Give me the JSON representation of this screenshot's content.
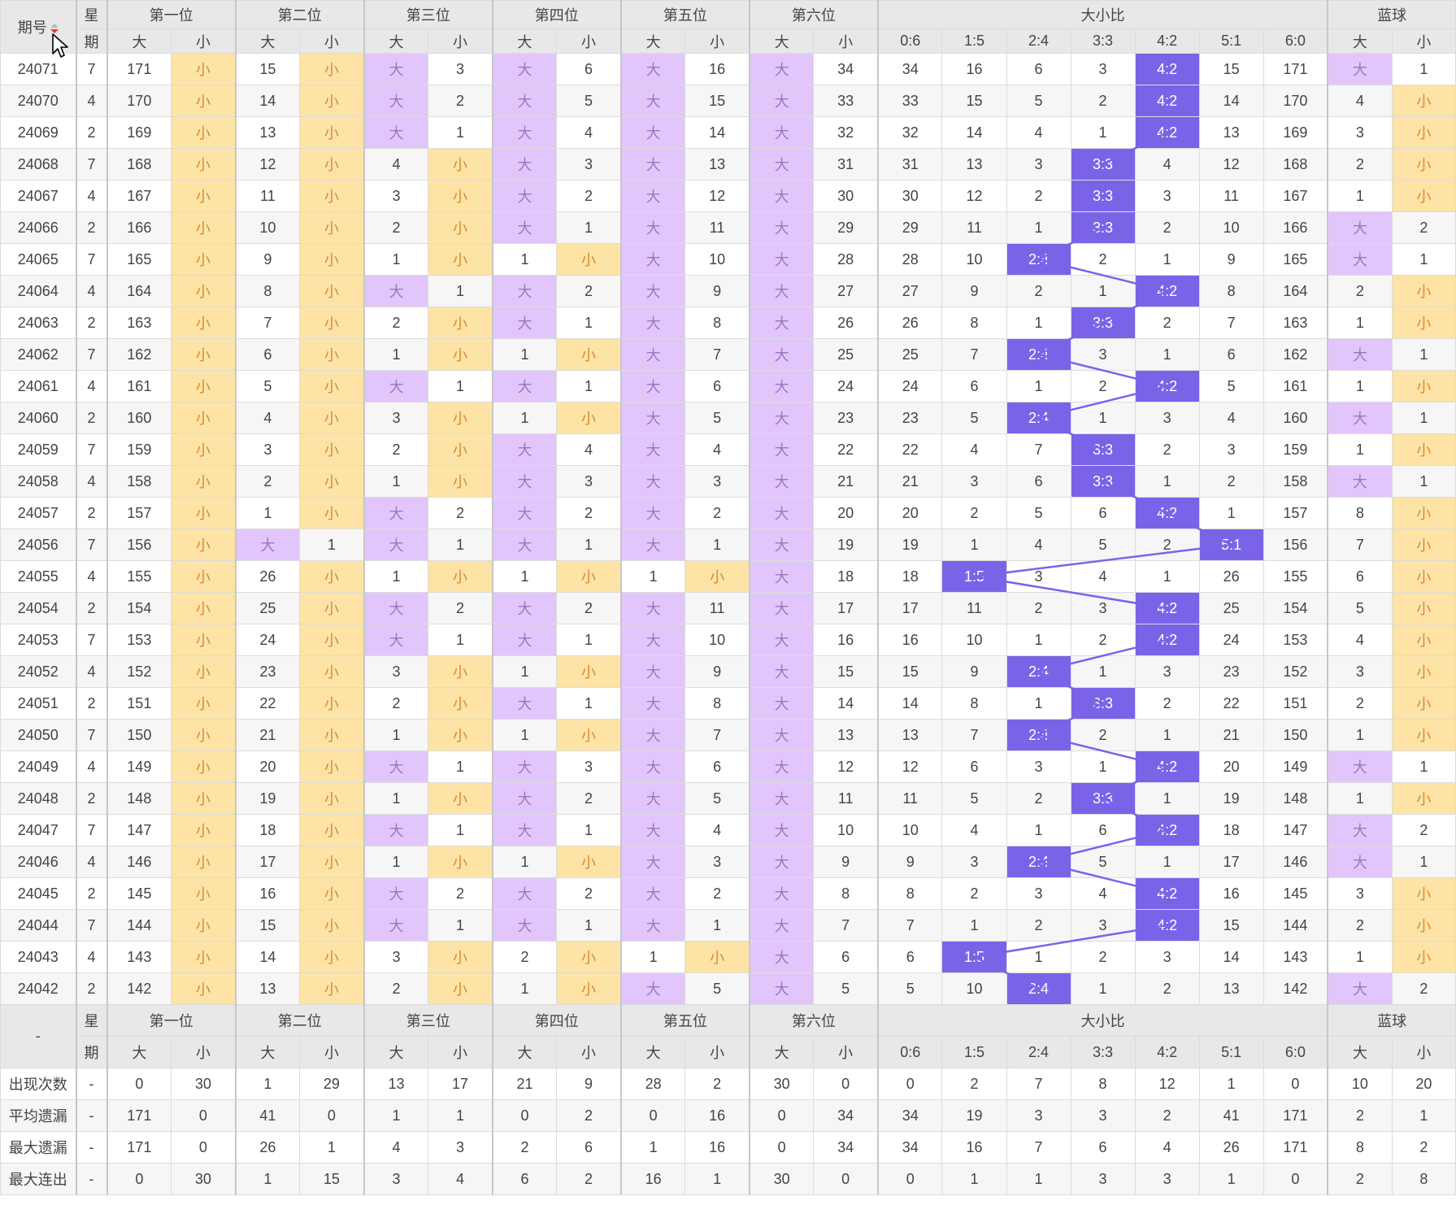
{
  "header": {
    "issue_label": "期号",
    "weekday_top": "星",
    "weekday_bottom": "期",
    "positions": [
      "第一位",
      "第二位",
      "第三位",
      "第四位",
      "第五位",
      "第六位"
    ],
    "ratio_title": "大小比",
    "blue_title": "蓝球",
    "big": "大",
    "small": "小",
    "ratio_labels": [
      "0:6",
      "1:5",
      "2:4",
      "3:3",
      "4:2",
      "5:1",
      "6:0"
    ]
  },
  "footer": {
    "issue_dash": "-",
    "weekday_top": "星",
    "weekday_bottom": "期"
  },
  "rows": [
    {
      "issue": "24071",
      "wd": "7",
      "p": [
        [
          "171",
          "小"
        ],
        [
          "15",
          "小"
        ],
        [
          "大",
          "3"
        ],
        [
          "大",
          "6"
        ],
        [
          "大",
          "16"
        ],
        [
          "大",
          "34"
        ]
      ],
      "r": [
        "34",
        "16",
        "6",
        "3",
        "4:2",
        "15",
        "171"
      ],
      "b": [
        "大",
        "1"
      ]
    },
    {
      "issue": "24070",
      "wd": "4",
      "p": [
        [
          "170",
          "小"
        ],
        [
          "14",
          "小"
        ],
        [
          "大",
          "2"
        ],
        [
          "大",
          "5"
        ],
        [
          "大",
          "15"
        ],
        [
          "大",
          "33"
        ]
      ],
      "r": [
        "33",
        "15",
        "5",
        "2",
        "4:2",
        "14",
        "170"
      ],
      "b": [
        "4",
        "小"
      ]
    },
    {
      "issue": "24069",
      "wd": "2",
      "p": [
        [
          "169",
          "小"
        ],
        [
          "13",
          "小"
        ],
        [
          "大",
          "1"
        ],
        [
          "大",
          "4"
        ],
        [
          "大",
          "14"
        ],
        [
          "大",
          "32"
        ]
      ],
      "r": [
        "32",
        "14",
        "4",
        "1",
        "4:2",
        "13",
        "169"
      ],
      "b": [
        "3",
        "小"
      ]
    },
    {
      "issue": "24068",
      "wd": "7",
      "p": [
        [
          "168",
          "小"
        ],
        [
          "12",
          "小"
        ],
        [
          "4",
          "小"
        ],
        [
          "大",
          "3"
        ],
        [
          "大",
          "13"
        ],
        [
          "大",
          "31"
        ]
      ],
      "r": [
        "31",
        "13",
        "3",
        "3:3",
        "4",
        "12",
        "168"
      ],
      "b": [
        "2",
        "小"
      ]
    },
    {
      "issue": "24067",
      "wd": "4",
      "p": [
        [
          "167",
          "小"
        ],
        [
          "11",
          "小"
        ],
        [
          "3",
          "小"
        ],
        [
          "大",
          "2"
        ],
        [
          "大",
          "12"
        ],
        [
          "大",
          "30"
        ]
      ],
      "r": [
        "30",
        "12",
        "2",
        "3:3",
        "3",
        "11",
        "167"
      ],
      "b": [
        "1",
        "小"
      ]
    },
    {
      "issue": "24066",
      "wd": "2",
      "p": [
        [
          "166",
          "小"
        ],
        [
          "10",
          "小"
        ],
        [
          "2",
          "小"
        ],
        [
          "大",
          "1"
        ],
        [
          "大",
          "11"
        ],
        [
          "大",
          "29"
        ]
      ],
      "r": [
        "29",
        "11",
        "1",
        "3:3",
        "2",
        "10",
        "166"
      ],
      "b": [
        "大",
        "2"
      ]
    },
    {
      "issue": "24065",
      "wd": "7",
      "p": [
        [
          "165",
          "小"
        ],
        [
          "9",
          "小"
        ],
        [
          "1",
          "小"
        ],
        [
          "1",
          "小"
        ],
        [
          "大",
          "10"
        ],
        [
          "大",
          "28"
        ]
      ],
      "r": [
        "28",
        "10",
        "2:4",
        "2",
        "1",
        "9",
        "165"
      ],
      "b": [
        "大",
        "1"
      ]
    },
    {
      "issue": "24064",
      "wd": "4",
      "p": [
        [
          "164",
          "小"
        ],
        [
          "8",
          "小"
        ],
        [
          "大",
          "1"
        ],
        [
          "大",
          "2"
        ],
        [
          "大",
          "9"
        ],
        [
          "大",
          "27"
        ]
      ],
      "r": [
        "27",
        "9",
        "2",
        "1",
        "4:2",
        "8",
        "164"
      ],
      "b": [
        "2",
        "小"
      ]
    },
    {
      "issue": "24063",
      "wd": "2",
      "p": [
        [
          "163",
          "小"
        ],
        [
          "7",
          "小"
        ],
        [
          "2",
          "小"
        ],
        [
          "大",
          "1"
        ],
        [
          "大",
          "8"
        ],
        [
          "大",
          "26"
        ]
      ],
      "r": [
        "26",
        "8",
        "1",
        "3:3",
        "2",
        "7",
        "163"
      ],
      "b": [
        "1",
        "小"
      ]
    },
    {
      "issue": "24062",
      "wd": "7",
      "p": [
        [
          "162",
          "小"
        ],
        [
          "6",
          "小"
        ],
        [
          "1",
          "小"
        ],
        [
          "1",
          "小"
        ],
        [
          "大",
          "7"
        ],
        [
          "大",
          "25"
        ]
      ],
      "r": [
        "25",
        "7",
        "2:4",
        "3",
        "1",
        "6",
        "162"
      ],
      "b": [
        "大",
        "1"
      ]
    },
    {
      "issue": "24061",
      "wd": "4",
      "p": [
        [
          "161",
          "小"
        ],
        [
          "5",
          "小"
        ],
        [
          "大",
          "1"
        ],
        [
          "大",
          "1"
        ],
        [
          "大",
          "6"
        ],
        [
          "大",
          "24"
        ]
      ],
      "r": [
        "24",
        "6",
        "1",
        "2",
        "4:2",
        "5",
        "161"
      ],
      "b": [
        "1",
        "小"
      ]
    },
    {
      "issue": "24060",
      "wd": "2",
      "p": [
        [
          "160",
          "小"
        ],
        [
          "4",
          "小"
        ],
        [
          "3",
          "小"
        ],
        [
          "1",
          "小"
        ],
        [
          "大",
          "5"
        ],
        [
          "大",
          "23"
        ]
      ],
      "r": [
        "23",
        "5",
        "2:4",
        "1",
        "3",
        "4",
        "160"
      ],
      "b": [
        "大",
        "1"
      ]
    },
    {
      "issue": "24059",
      "wd": "7",
      "p": [
        [
          "159",
          "小"
        ],
        [
          "3",
          "小"
        ],
        [
          "2",
          "小"
        ],
        [
          "大",
          "4"
        ],
        [
          "大",
          "4"
        ],
        [
          "大",
          "22"
        ]
      ],
      "r": [
        "22",
        "4",
        "7",
        "3:3",
        "2",
        "3",
        "159"
      ],
      "b": [
        "1",
        "小"
      ]
    },
    {
      "issue": "24058",
      "wd": "4",
      "p": [
        [
          "158",
          "小"
        ],
        [
          "2",
          "小"
        ],
        [
          "1",
          "小"
        ],
        [
          "大",
          "3"
        ],
        [
          "大",
          "3"
        ],
        [
          "大",
          "21"
        ]
      ],
      "r": [
        "21",
        "3",
        "6",
        "3:3",
        "1",
        "2",
        "158"
      ],
      "b": [
        "大",
        "1"
      ]
    },
    {
      "issue": "24057",
      "wd": "2",
      "p": [
        [
          "157",
          "小"
        ],
        [
          "1",
          "小"
        ],
        [
          "大",
          "2"
        ],
        [
          "大",
          "2"
        ],
        [
          "大",
          "2"
        ],
        [
          "大",
          "20"
        ]
      ],
      "r": [
        "20",
        "2",
        "5",
        "6",
        "4:2",
        "1",
        "157"
      ],
      "b": [
        "8",
        "小"
      ]
    },
    {
      "issue": "24056",
      "wd": "7",
      "p": [
        [
          "156",
          "小"
        ],
        [
          "大",
          "1"
        ],
        [
          "大",
          "1"
        ],
        [
          "大",
          "1"
        ],
        [
          "大",
          "1"
        ],
        [
          "大",
          "19"
        ]
      ],
      "r": [
        "19",
        "1",
        "4",
        "5",
        "2",
        "5:1",
        "156"
      ],
      "b": [
        "7",
        "小"
      ]
    },
    {
      "issue": "24055",
      "wd": "4",
      "p": [
        [
          "155",
          "小"
        ],
        [
          "26",
          "小"
        ],
        [
          "1",
          "小"
        ],
        [
          "1",
          "小"
        ],
        [
          "1",
          "小"
        ],
        [
          "大",
          "18"
        ]
      ],
      "r": [
        "18",
        "1:5",
        "3",
        "4",
        "1",
        "26",
        "155"
      ],
      "b": [
        "6",
        "小"
      ]
    },
    {
      "issue": "24054",
      "wd": "2",
      "p": [
        [
          "154",
          "小"
        ],
        [
          "25",
          "小"
        ],
        [
          "大",
          "2"
        ],
        [
          "大",
          "2"
        ],
        [
          "大",
          "11"
        ],
        [
          "大",
          "17"
        ]
      ],
      "r": [
        "17",
        "11",
        "2",
        "3",
        "4:2",
        "25",
        "154"
      ],
      "b": [
        "5",
        "小"
      ]
    },
    {
      "issue": "24053",
      "wd": "7",
      "p": [
        [
          "153",
          "小"
        ],
        [
          "24",
          "小"
        ],
        [
          "大",
          "1"
        ],
        [
          "大",
          "1"
        ],
        [
          "大",
          "10"
        ],
        [
          "大",
          "16"
        ]
      ],
      "r": [
        "16",
        "10",
        "1",
        "2",
        "4:2",
        "24",
        "153"
      ],
      "b": [
        "4",
        "小"
      ]
    },
    {
      "issue": "24052",
      "wd": "4",
      "p": [
        [
          "152",
          "小"
        ],
        [
          "23",
          "小"
        ],
        [
          "3",
          "小"
        ],
        [
          "1",
          "小"
        ],
        [
          "大",
          "9"
        ],
        [
          "大",
          "15"
        ]
      ],
      "r": [
        "15",
        "9",
        "2:4",
        "1",
        "3",
        "23",
        "152"
      ],
      "b": [
        "3",
        "小"
      ]
    },
    {
      "issue": "24051",
      "wd": "2",
      "p": [
        [
          "151",
          "小"
        ],
        [
          "22",
          "小"
        ],
        [
          "2",
          "小"
        ],
        [
          "大",
          "1"
        ],
        [
          "大",
          "8"
        ],
        [
          "大",
          "14"
        ]
      ],
      "r": [
        "14",
        "8",
        "1",
        "3:3",
        "2",
        "22",
        "151"
      ],
      "b": [
        "2",
        "小"
      ]
    },
    {
      "issue": "24050",
      "wd": "7",
      "p": [
        [
          "150",
          "小"
        ],
        [
          "21",
          "小"
        ],
        [
          "1",
          "小"
        ],
        [
          "1",
          "小"
        ],
        [
          "大",
          "7"
        ],
        [
          "大",
          "13"
        ]
      ],
      "r": [
        "13",
        "7",
        "2:4",
        "2",
        "1",
        "21",
        "150"
      ],
      "b": [
        "1",
        "小"
      ]
    },
    {
      "issue": "24049",
      "wd": "4",
      "p": [
        [
          "149",
          "小"
        ],
        [
          "20",
          "小"
        ],
        [
          "大",
          "1"
        ],
        [
          "大",
          "3"
        ],
        [
          "大",
          "6"
        ],
        [
          "大",
          "12"
        ]
      ],
      "r": [
        "12",
        "6",
        "3",
        "1",
        "4:2",
        "20",
        "149"
      ],
      "b": [
        "大",
        "1"
      ]
    },
    {
      "issue": "24048",
      "wd": "2",
      "p": [
        [
          "148",
          "小"
        ],
        [
          "19",
          "小"
        ],
        [
          "1",
          "小"
        ],
        [
          "大",
          "2"
        ],
        [
          "大",
          "5"
        ],
        [
          "大",
          "11"
        ]
      ],
      "r": [
        "11",
        "5",
        "2",
        "3:3",
        "1",
        "19",
        "148"
      ],
      "b": [
        "1",
        "小"
      ]
    },
    {
      "issue": "24047",
      "wd": "7",
      "p": [
        [
          "147",
          "小"
        ],
        [
          "18",
          "小"
        ],
        [
          "大",
          "1"
        ],
        [
          "大",
          "1"
        ],
        [
          "大",
          "4"
        ],
        [
          "大",
          "10"
        ]
      ],
      "r": [
        "10",
        "4",
        "1",
        "6",
        "4:2",
        "18",
        "147"
      ],
      "b": [
        "大",
        "2"
      ]
    },
    {
      "issue": "24046",
      "wd": "4",
      "p": [
        [
          "146",
          "小"
        ],
        [
          "17",
          "小"
        ],
        [
          "1",
          "小"
        ],
        [
          "1",
          "小"
        ],
        [
          "大",
          "3"
        ],
        [
          "大",
          "9"
        ]
      ],
      "r": [
        "9",
        "3",
        "2:4",
        "5",
        "1",
        "17",
        "146"
      ],
      "b": [
        "大",
        "1"
      ]
    },
    {
      "issue": "24045",
      "wd": "2",
      "p": [
        [
          "145",
          "小"
        ],
        [
          "16",
          "小"
        ],
        [
          "大",
          "2"
        ],
        [
          "大",
          "2"
        ],
        [
          "大",
          "2"
        ],
        [
          "大",
          "8"
        ]
      ],
      "r": [
        "8",
        "2",
        "3",
        "4",
        "4:2",
        "16",
        "145"
      ],
      "b": [
        "3",
        "小"
      ]
    },
    {
      "issue": "24044",
      "wd": "7",
      "p": [
        [
          "144",
          "小"
        ],
        [
          "15",
          "小"
        ],
        [
          "大",
          "1"
        ],
        [
          "大",
          "1"
        ],
        [
          "大",
          "1"
        ],
        [
          "大",
          "7"
        ]
      ],
      "r": [
        "7",
        "1",
        "2",
        "3",
        "4:2",
        "15",
        "144"
      ],
      "b": [
        "2",
        "小"
      ]
    },
    {
      "issue": "24043",
      "wd": "4",
      "p": [
        [
          "143",
          "小"
        ],
        [
          "14",
          "小"
        ],
        [
          "3",
          "小"
        ],
        [
          "2",
          "小"
        ],
        [
          "1",
          "小"
        ],
        [
          "大",
          "6"
        ]
      ],
      "r": [
        "6",
        "1:5",
        "1",
        "2",
        "3",
        "14",
        "143"
      ],
      "b": [
        "1",
        "小"
      ]
    },
    {
      "issue": "24042",
      "wd": "2",
      "p": [
        [
          "142",
          "小"
        ],
        [
          "13",
          "小"
        ],
        [
          "2",
          "小"
        ],
        [
          "1",
          "小"
        ],
        [
          "大",
          "5"
        ],
        [
          "大",
          "5"
        ]
      ],
      "r": [
        "5",
        "10",
        "2:4",
        "1",
        "2",
        "13",
        "142"
      ],
      "b": [
        "大",
        "2"
      ]
    }
  ],
  "stats": [
    {
      "label": "出现次数",
      "dash": "-",
      "v": [
        "0",
        "30",
        "1",
        "29",
        "13",
        "17",
        "21",
        "9",
        "28",
        "2",
        "30",
        "0",
        "0",
        "2",
        "7",
        "8",
        "12",
        "1",
        "0",
        "10",
        "20"
      ]
    },
    {
      "label": "平均遗漏",
      "dash": "-",
      "v": [
        "171",
        "0",
        "41",
        "0",
        "1",
        "1",
        "0",
        "2",
        "0",
        "16",
        "0",
        "34",
        "34",
        "19",
        "3",
        "3",
        "2",
        "41",
        "171",
        "2",
        "1"
      ]
    },
    {
      "label": "最大遗漏",
      "dash": "-",
      "v": [
        "171",
        "0",
        "26",
        "1",
        "4",
        "3",
        "2",
        "6",
        "1",
        "16",
        "0",
        "34",
        "34",
        "16",
        "7",
        "6",
        "4",
        "26",
        "171",
        "8",
        "2"
      ]
    },
    {
      "label": "最大连出",
      "dash": "-",
      "v": [
        "0",
        "30",
        "1",
        "15",
        "3",
        "4",
        "6",
        "2",
        "16",
        "1",
        "30",
        "0",
        "0",
        "1",
        "1",
        "3",
        "3",
        "1",
        "0",
        "2",
        "8"
      ]
    }
  ],
  "colors": {
    "big_bg": "#e2c6fb",
    "small_bg": "#fde3a6",
    "ratio_bg": "#7b63e8",
    "trend_line": "#7b63e8"
  },
  "icons": {
    "sort": "sort-arrows-icon",
    "cursor": "mouse-pointer-icon"
  }
}
